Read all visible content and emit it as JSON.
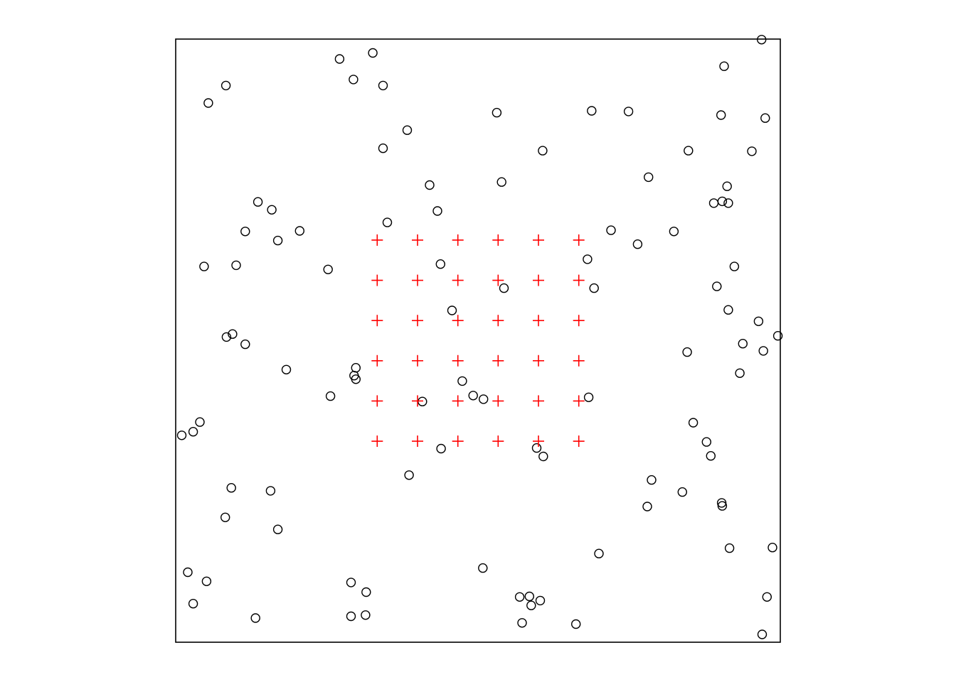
{
  "chart_data": {
    "type": "scatter",
    "title": "",
    "xlabel": "",
    "ylabel": "",
    "xlim": [
      0,
      1
    ],
    "ylim": [
      0,
      1
    ],
    "grid": false,
    "axes_shown": false,
    "series": [
      {
        "marker": "open-circle",
        "color": "#000000",
        "points": [
          [
            0.271,
            0.967
          ],
          [
            0.326,
            0.977
          ],
          [
            0.294,
            0.933
          ],
          [
            0.343,
            0.923
          ],
          [
            0.083,
            0.923
          ],
          [
            0.054,
            0.894
          ],
          [
            0.383,
            0.849
          ],
          [
            0.343,
            0.819
          ],
          [
            0.531,
            0.878
          ],
          [
            0.607,
            0.815
          ],
          [
            0.42,
            0.758
          ],
          [
            0.539,
            0.763
          ],
          [
            0.688,
            0.881
          ],
          [
            0.749,
            0.88
          ],
          [
            0.907,
            0.955
          ],
          [
            0.902,
            0.874
          ],
          [
            0.975,
            0.869
          ],
          [
            0.848,
            0.815
          ],
          [
            0.953,
            0.814
          ],
          [
            0.782,
            0.771
          ],
          [
            0.912,
            0.756
          ],
          [
            0.89,
            0.728
          ],
          [
            0.904,
            0.731
          ],
          [
            0.914,
            0.728
          ],
          [
            0.969,
            0.999
          ],
          [
            0.136,
            0.73
          ],
          [
            0.159,
            0.717
          ],
          [
            0.115,
            0.681
          ],
          [
            0.169,
            0.666
          ],
          [
            0.205,
            0.682
          ],
          [
            0.35,
            0.696
          ],
          [
            0.433,
            0.715
          ],
          [
            0.72,
            0.683
          ],
          [
            0.764,
            0.66
          ],
          [
            0.824,
            0.681
          ],
          [
            0.681,
            0.635
          ],
          [
            0.047,
            0.623
          ],
          [
            0.1,
            0.625
          ],
          [
            0.252,
            0.618
          ],
          [
            0.438,
            0.627
          ],
          [
            0.543,
            0.587
          ],
          [
            0.692,
            0.587
          ],
          [
            0.924,
            0.623
          ],
          [
            0.895,
            0.59
          ],
          [
            0.914,
            0.551
          ],
          [
            0.457,
            0.55
          ],
          [
            0.846,
            0.481
          ],
          [
            0.938,
            0.495
          ],
          [
            0.964,
            0.532
          ],
          [
            0.972,
            0.483
          ],
          [
            0.996,
            0.508
          ],
          [
            0.933,
            0.446
          ],
          [
            0.084,
            0.506
          ],
          [
            0.094,
            0.511
          ],
          [
            0.115,
            0.494
          ],
          [
            0.183,
            0.452
          ],
          [
            0.298,
            0.455
          ],
          [
            0.295,
            0.442
          ],
          [
            0.298,
            0.436
          ],
          [
            0.474,
            0.433
          ],
          [
            0.256,
            0.408
          ],
          [
            0.492,
            0.409
          ],
          [
            0.509,
            0.403
          ],
          [
            0.683,
            0.406
          ],
          [
            0.01,
            0.343
          ],
          [
            0.029,
            0.349
          ],
          [
            0.04,
            0.365
          ],
          [
            0.408,
            0.399
          ],
          [
            0.439,
            0.321
          ],
          [
            0.597,
            0.322
          ],
          [
            0.608,
            0.308
          ],
          [
            0.856,
            0.364
          ],
          [
            0.878,
            0.332
          ],
          [
            0.885,
            0.309
          ],
          [
            0.386,
            0.277
          ],
          [
            0.092,
            0.256
          ],
          [
            0.157,
            0.251
          ],
          [
            0.082,
            0.207
          ],
          [
            0.169,
            0.187
          ],
          [
            0.787,
            0.269
          ],
          [
            0.838,
            0.249
          ],
          [
            0.78,
            0.225
          ],
          [
            0.903,
            0.231
          ],
          [
            0.904,
            0.226
          ],
          [
            0.916,
            0.156
          ],
          [
            0.987,
            0.157
          ],
          [
            0.7,
            0.147
          ],
          [
            0.508,
            0.123
          ],
          [
            0.02,
            0.116
          ],
          [
            0.051,
            0.101
          ],
          [
            0.029,
            0.064
          ],
          [
            0.132,
            0.04
          ],
          [
            0.29,
            0.099
          ],
          [
            0.315,
            0.083
          ],
          [
            0.29,
            0.043
          ],
          [
            0.314,
            0.045
          ],
          [
            0.569,
            0.075
          ],
          [
            0.585,
            0.076
          ],
          [
            0.588,
            0.061
          ],
          [
            0.603,
            0.069
          ],
          [
            0.573,
            0.032
          ],
          [
            0.662,
            0.03
          ],
          [
            0.978,
            0.075
          ],
          [
            0.97,
            0.013
          ]
        ]
      },
      {
        "marker": "plus",
        "color": "#ff0000",
        "grid_values": [
          0.3333,
          0.4,
          0.4667,
          0.5333,
          0.6,
          0.6667
        ]
      }
    ]
  }
}
